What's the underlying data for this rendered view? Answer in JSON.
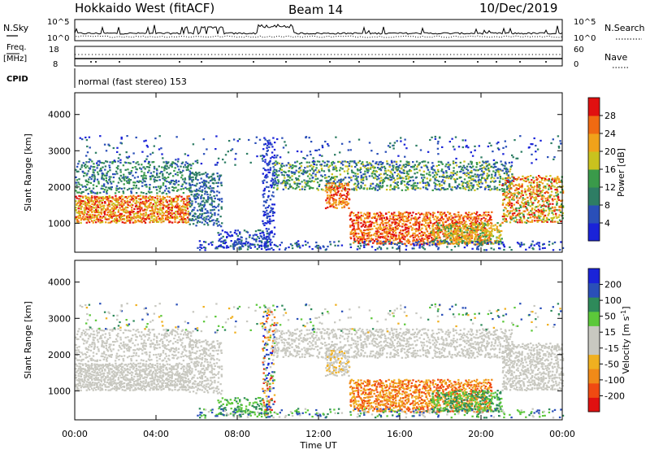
{
  "header": {
    "station": "Hokkaido West (fitACF)",
    "beam": "Beam 14",
    "date": "10/Dec/2019"
  },
  "top_panels": {
    "nsky_label": "N.Sky",
    "nsky_ticks": [
      "10^5",
      "10^0"
    ],
    "nsearch_label": "N.Search",
    "nsearch_ticks": [
      "10^5",
      "10^0"
    ],
    "freq_label": "Freq.",
    "freq_unit": "[MHz]",
    "freq_ticks": [
      "18",
      "8"
    ],
    "nave_label": "Nave",
    "nave_ticks": [
      "60",
      "0"
    ],
    "cpid_label": "CPID",
    "cpid_value": "normal (fast stereo) 153"
  },
  "colors": {
    "power_scale": [
      "#1a23d8",
      "#2a4fb8",
      "#2e7d64",
      "#3a9a4a",
      "#c9c21e",
      "#f1a21a",
      "#f06a12",
      "#e01010"
    ],
    "velocity_scale": [
      "#e01010",
      "#f04a12",
      "#f08a18",
      "#f0b020",
      "#c8c8c0",
      "#c8c8c0",
      "#5cc83a",
      "#2e8a5a",
      "#2a4fb8",
      "#1a23d8"
    ]
  },
  "chart_data": [
    {
      "type": "heatmap",
      "name": "power-panel",
      "ylabel": "Slant Range [km]",
      "xlabel": "Time UT",
      "xticks": [
        "00:00",
        "04:00",
        "08:00",
        "12:00",
        "16:00",
        "20:00",
        "00:00"
      ],
      "yticks": [
        "1000",
        "2000",
        "3000",
        "4000"
      ],
      "ylim": [
        200,
        4600
      ],
      "xlim_hours": [
        0,
        24
      ],
      "colorbar": {
        "label": "Power [dB]",
        "ticks": [
          "4",
          "8",
          "12",
          "16",
          "20",
          "24",
          "28"
        ],
        "range": [
          0,
          30
        ]
      }
    },
    {
      "type": "heatmap",
      "name": "velocity-panel",
      "ylabel": "Slant Range [km]",
      "xlabel": "Time UT",
      "xticks": [
        "00:00",
        "04:00",
        "08:00",
        "12:00",
        "16:00",
        "20:00",
        "00:00"
      ],
      "yticks": [
        "1000",
        "2000",
        "3000",
        "4000"
      ],
      "ylim": [
        200,
        4600
      ],
      "xlim_hours": [
        0,
        24
      ],
      "colorbar": {
        "label": "Velocity [m s",
        "label_sup": "-1",
        "label_end": "]",
        "ticks": [
          "200",
          "100",
          "50",
          "15",
          "-15",
          "-50",
          "-100",
          "-200"
        ],
        "range": [
          -250,
          250
        ]
      }
    }
  ],
  "x_axis_label": "Time UT"
}
